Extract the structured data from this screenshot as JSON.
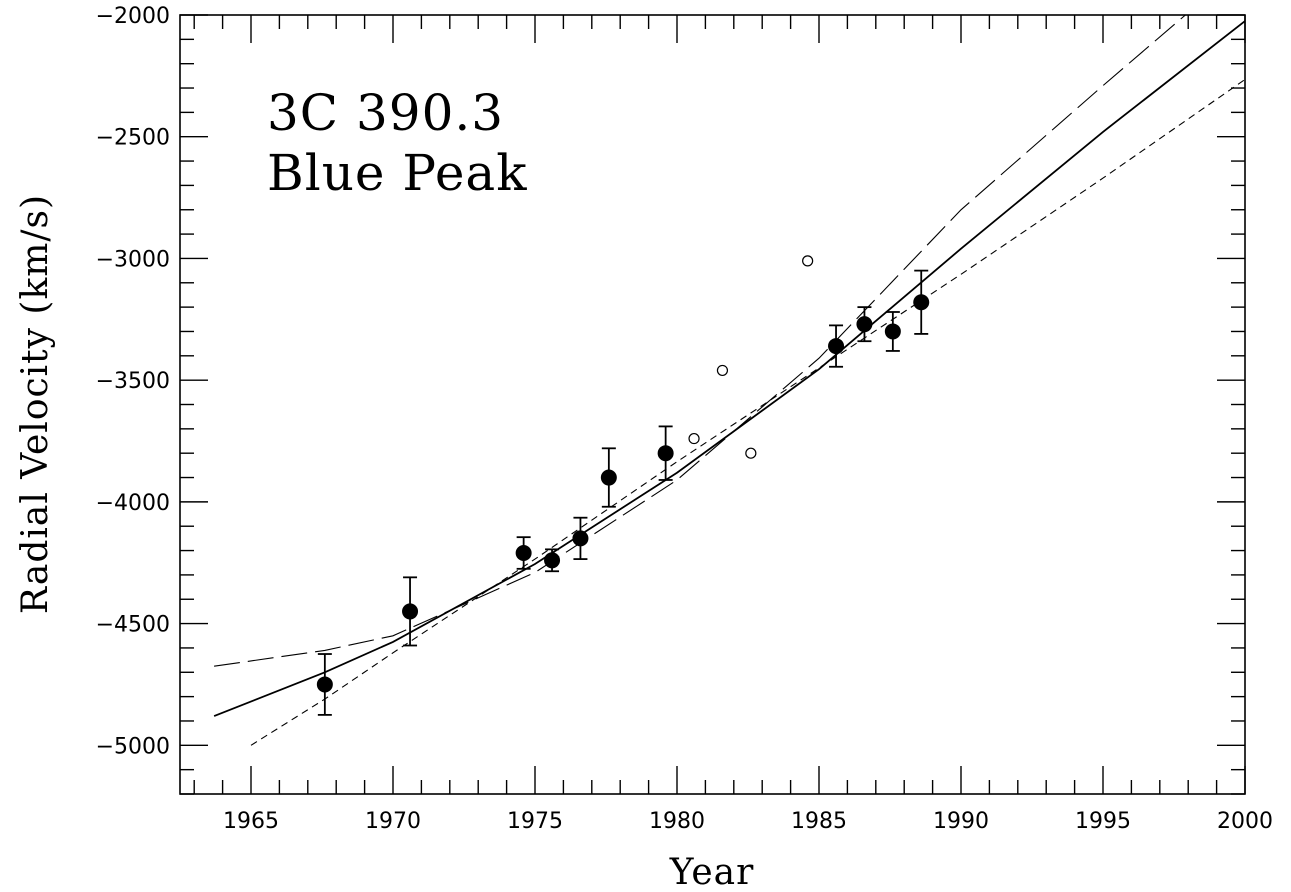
{
  "chart_data": {
    "type": "scatter",
    "annotations": [
      "3C 390.3",
      "Blue Peak"
    ],
    "xlabel": "Year",
    "ylabel": "Radial Velocity (km/s)",
    "xlim": [
      1962.5,
      2000
    ],
    "ylim": [
      -5200,
      -2000
    ],
    "x_ticks": [
      1965,
      1970,
      1975,
      1980,
      1985,
      1990,
      1995,
      2000
    ],
    "y_ticks": [
      -5000,
      -4500,
      -4000,
      -3500,
      -3000,
      -2500,
      -2000
    ],
    "x_minor_step": 1,
    "y_minor_step": 100,
    "grid": false,
    "series": [
      {
        "marker": "filled-circle",
        "error_bars": true,
        "points": [
          {
            "x": 1967.6,
            "y": -4750,
            "err": 125
          },
          {
            "x": 1970.6,
            "y": -4450,
            "err": 140
          },
          {
            "x": 1974.6,
            "y": -4210,
            "err": 65
          },
          {
            "x": 1975.6,
            "y": -4240,
            "err": 45
          },
          {
            "x": 1976.6,
            "y": -4150,
            "err": 85
          },
          {
            "x": 1977.6,
            "y": -3900,
            "err": 120
          },
          {
            "x": 1979.6,
            "y": -3800,
            "err": 110
          },
          {
            "x": 1985.6,
            "y": -3360,
            "err": 85
          },
          {
            "x": 1986.6,
            "y": -3270,
            "err": 70
          },
          {
            "x": 1987.6,
            "y": -3300,
            "err": 80
          },
          {
            "x": 1988.6,
            "y": -3180,
            "err": 130
          }
        ]
      },
      {
        "marker": "open-circle",
        "error_bars": false,
        "points": [
          {
            "x": 1980.6,
            "y": -3740
          },
          {
            "x": 1981.6,
            "y": -3460
          },
          {
            "x": 1982.6,
            "y": -3800
          },
          {
            "x": 1984.6,
            "y": -3010
          }
        ]
      }
    ],
    "curves": [
      {
        "style": "solid",
        "x": [
          1963.7,
          1967.6,
          1970,
          1975,
          1980,
          1985,
          1990,
          1995,
          2000
        ],
        "y": [
          -4880,
          -4700,
          -4575,
          -4255,
          -3880,
          -3455,
          -2960,
          -2480,
          -2025
        ]
      },
      {
        "style": "long-dash",
        "x": [
          1963.7,
          1967.6,
          1970,
          1975,
          1980,
          1985,
          1990,
          1995,
          1997.9
        ],
        "y": [
          -4675,
          -4610,
          -4550,
          -4290,
          -3910,
          -3410,
          -2800,
          -2290,
          -2000
        ]
      },
      {
        "style": "short-dash",
        "x": [
          1965,
          1967.6,
          1970,
          1975,
          1980,
          1985,
          1990,
          1995,
          2000
        ],
        "y": [
          -5000,
          -4810,
          -4620,
          -4235,
          -3835,
          -3450,
          -3065,
          -2670,
          -2265
        ]
      }
    ]
  }
}
